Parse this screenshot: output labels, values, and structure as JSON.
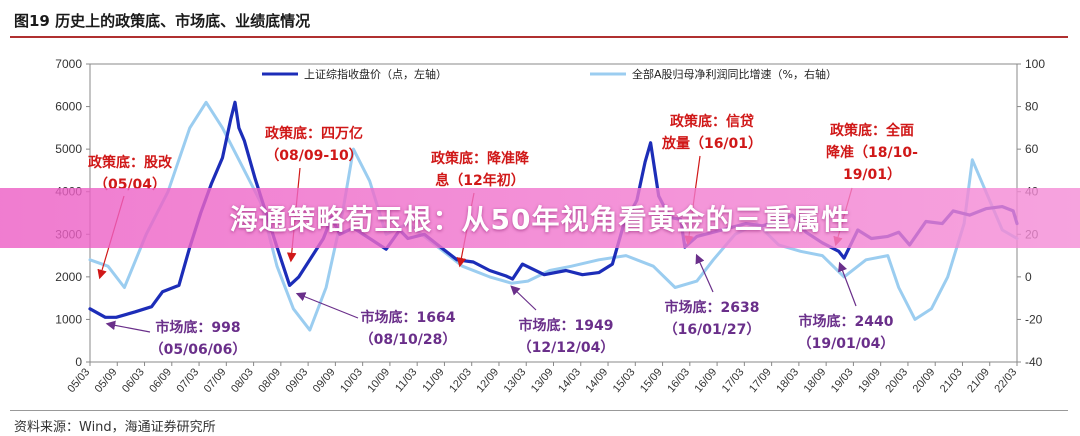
{
  "page": {
    "figure_title": "图19 历史上的政策底、市场底、业绩底情况",
    "source_note": "资料来源：Wind，海通证券研究所",
    "banner_text": "海通策略荀玉根：从50年视角看黄金的三重属性"
  },
  "colors": {
    "index_line": "#1c2db8",
    "growth_line": "#9bcdf0",
    "policy_text": "#d01818",
    "market_text": "#6a2f8a",
    "axis": "#888888"
  },
  "chart_data": {
    "type": "line",
    "title": "图19 历史上的政策底、市场底、业绩底情况",
    "x_ticks": [
      "05/03",
      "05/09",
      "06/03",
      "06/09",
      "07/03",
      "07/09",
      "08/03",
      "08/09",
      "09/03",
      "09/09",
      "10/03",
      "10/09",
      "11/03",
      "11/09",
      "12/03",
      "12/09",
      "13/03",
      "13/09",
      "14/03",
      "14/09",
      "15/03",
      "15/09",
      "16/03",
      "16/09",
      "17/03",
      "17/09",
      "18/03",
      "18/09",
      "19/03",
      "19/09",
      "20/03",
      "20/09",
      "21/03",
      "21/09",
      "22/03"
    ],
    "x_range": [
      2005.17,
      2022.17
    ],
    "left_axis": {
      "label": "上证综指收盘价（点，左轴）",
      "range": [
        0,
        7000
      ],
      "ticks": [
        0,
        1000,
        2000,
        3000,
        4000,
        5000,
        6000,
        7000
      ]
    },
    "right_axis": {
      "label": "全部A股归母净利润同比增速（%，右轴）",
      "range": [
        -40,
        100
      ],
      "ticks": [
        -40,
        -20,
        0,
        20,
        40,
        60,
        80,
        100
      ]
    },
    "series": [
      {
        "name": "上证综指收盘价（点，左轴）",
        "axis": "left",
        "x": [
          2005.17,
          2005.45,
          2005.65,
          2006.0,
          2006.3,
          2006.5,
          2006.8,
          2007.0,
          2007.2,
          2007.4,
          2007.6,
          2007.75,
          2007.83,
          2007.9,
          2008.0,
          2008.2,
          2008.4,
          2008.6,
          2008.83,
          2009.0,
          2009.2,
          2009.45,
          2009.6,
          2009.75,
          2010.0,
          2010.3,
          2010.6,
          2010.85,
          2011.0,
          2011.3,
          2011.6,
          2011.9,
          2012.2,
          2012.5,
          2012.8,
          2012.92,
          2013.1,
          2013.5,
          2013.9,
          2014.2,
          2014.5,
          2014.75,
          2014.95,
          2015.2,
          2015.35,
          2015.45,
          2015.6,
          2015.8,
          2016.0,
          2016.08,
          2016.3,
          2016.6,
          2016.9,
          2017.2,
          2017.5,
          2017.9,
          2018.05,
          2018.3,
          2018.6,
          2018.9,
          2019.0,
          2019.25,
          2019.5,
          2019.8,
          2020.0,
          2020.2,
          2020.5,
          2020.8,
          2021.0,
          2021.3,
          2021.6,
          2021.9,
          2022.1,
          2022.17
        ],
        "y": [
          1250,
          1050,
          1050,
          1180,
          1300,
          1650,
          1800,
          2700,
          3500,
          4200,
          4800,
          5700,
          6100,
          5500,
          5200,
          4300,
          3500,
          2700,
          1800,
          2000,
          2400,
          2900,
          3400,
          3000,
          3150,
          2900,
          2650,
          3100,
          2900,
          3000,
          2700,
          2400,
          2350,
          2150,
          2020,
          1950,
          2300,
          2050,
          2150,
          2050,
          2100,
          2300,
          3200,
          3800,
          4700,
          5150,
          3900,
          3400,
          3350,
          2700,
          2950,
          3050,
          3150,
          3250,
          3200,
          3350,
          3450,
          3050,
          2800,
          2600,
          2440,
          3100,
          2900,
          2950,
          3050,
          2750,
          3300,
          3250,
          3550,
          3450,
          3600,
          3650,
          3550,
          3250
        ]
      },
      {
        "name": "全部A股归母净利润同比增速（%，右轴）",
        "axis": "right",
        "x": [
          2005.17,
          2005.5,
          2005.8,
          2006.2,
          2006.6,
          2007.0,
          2007.3,
          2007.6,
          2007.9,
          2008.3,
          2008.6,
          2008.9,
          2009.2,
          2009.5,
          2009.8,
          2010.0,
          2010.3,
          2010.6,
          2011.0,
          2011.5,
          2012.0,
          2012.5,
          2012.9,
          2013.2,
          2013.6,
          2014.0,
          2014.5,
          2015.0,
          2015.5,
          2015.9,
          2016.3,
          2016.6,
          2017.0,
          2017.4,
          2017.8,
          2018.2,
          2018.6,
          2019.0,
          2019.4,
          2019.8,
          2020.0,
          2020.3,
          2020.6,
          2020.9,
          2021.2,
          2021.35,
          2021.6,
          2021.9,
          2022.17
        ],
        "y": [
          8,
          5,
          -5,
          20,
          40,
          70,
          82,
          70,
          55,
          35,
          5,
          -15,
          -25,
          -5,
          30,
          60,
          45,
          20,
          25,
          15,
          5,
          0,
          -3,
          -2,
          3,
          5,
          8,
          10,
          5,
          -5,
          -2,
          8,
          20,
          25,
          15,
          12,
          10,
          0,
          8,
          10,
          -5,
          -20,
          -15,
          0,
          25,
          55,
          40,
          22,
          18
        ]
      }
    ],
    "annotations": {
      "policy": [
        {
          "id": "p1",
          "lines": [
            "政策底：股改",
            "（05/04）"
          ]
        },
        {
          "id": "p2",
          "lines": [
            "政策底：四万亿",
            "（08/09-10）"
          ]
        },
        {
          "id": "p3",
          "lines": [
            "政策底：降准降",
            "息（12年初）"
          ]
        },
        {
          "id": "p4",
          "lines": [
            "政策底：信贷",
            "放量（16/01）"
          ]
        },
        {
          "id": "p5",
          "lines": [
            "政策底：全面",
            "降准（18/10-",
            "19/01）"
          ]
        }
      ],
      "market": [
        {
          "id": "m1",
          "lines": [
            "市场底：998",
            "（05/06/06）"
          ]
        },
        {
          "id": "m2",
          "lines": [
            "市场底：1664",
            "（08/10/28）"
          ]
        },
        {
          "id": "m3",
          "lines": [
            "市场底：1949",
            "（12/12/04）"
          ]
        },
        {
          "id": "m4",
          "lines": [
            "市场底：2638",
            "（16/01/27）"
          ]
        },
        {
          "id": "m5",
          "lines": [
            "市场底：2440",
            "（19/01/04）"
          ]
        }
      ]
    }
  }
}
